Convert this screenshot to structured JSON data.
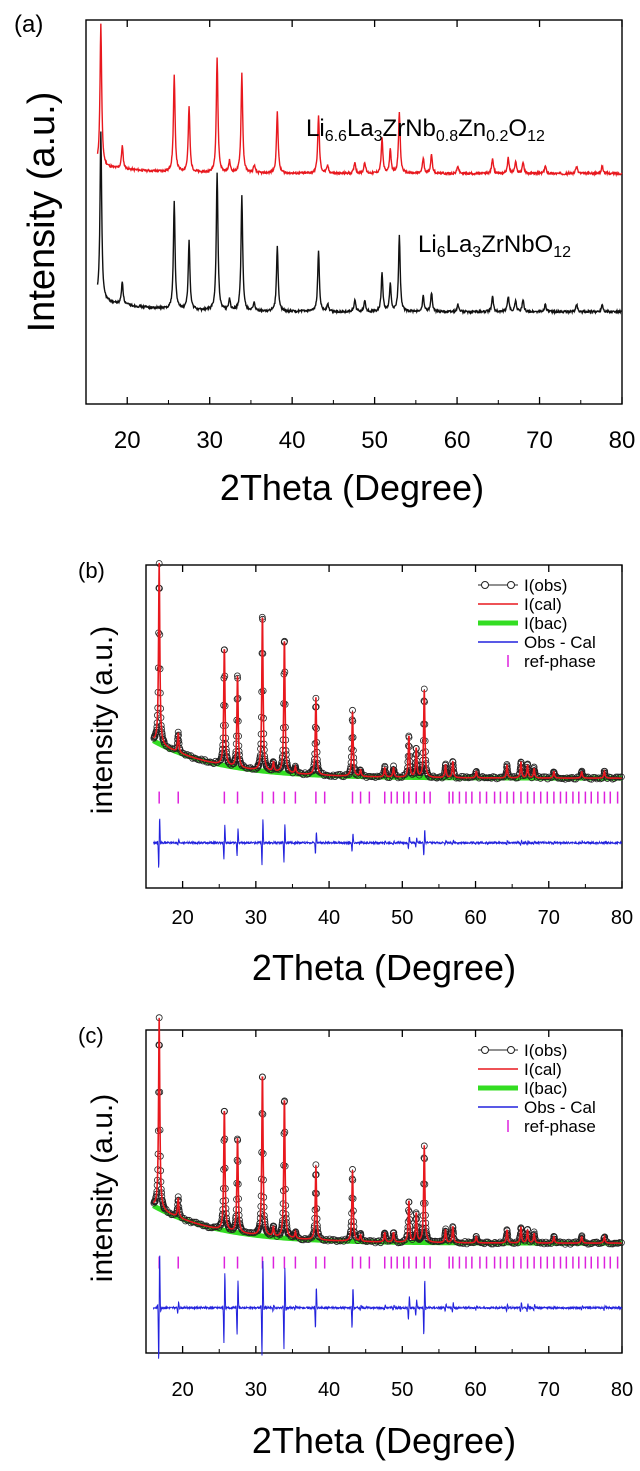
{
  "panels": [
    {
      "panel_label": "(a)",
      "ylabel": "Intensity (a.u.)",
      "xlabel": "2Theta (Degree)",
      "xticks": [
        "20",
        "30",
        "40",
        "50",
        "60",
        "70",
        "80"
      ],
      "legend": []
    },
    {
      "panel_label": "(b)",
      "ylabel": "intensity (a.u.)",
      "xlabel": "2Theta (Degree)",
      "xticks": [
        "20",
        "30",
        "40",
        "50",
        "60",
        "70",
        "80"
      ],
      "legend": [
        "I(obs)",
        "I(cal)",
        "I(bac)",
        "Obs - Cal",
        "ref-phase"
      ]
    },
    {
      "panel_label": "(c)",
      "ylabel": "intensity (a.u.)",
      "xlabel": "2Theta (Degree)",
      "xticks": [
        "20",
        "30",
        "40",
        "50",
        "60",
        "70",
        "80"
      ],
      "legend": [
        "I(obs)",
        "I(cal)",
        "I(bac)",
        "Obs - Cal",
        "ref-phase"
      ]
    }
  ],
  "chart_data": [
    {
      "type": "line",
      "panel": "(a)",
      "xlabel": "2Theta (Degree)",
      "ylabel": "Intensity (a.u.)",
      "xlim": [
        15,
        80
      ],
      "ylim": [
        0,
        100
      ],
      "y_ticks_shown": false,
      "series": [
        {
          "name": "Li6.6La3ZrNb0.8Zn0.2O12",
          "label_parts": [
            [
              "Li",
              ""
            ],
            [
              "6.6",
              "sub"
            ],
            [
              "La",
              ""
            ],
            [
              "3",
              "sub"
            ],
            [
              "ZrNb",
              ""
            ],
            [
              "0.8",
              "sub"
            ],
            [
              "Zn",
              ""
            ],
            [
              "0.2",
              "sub"
            ],
            [
              "O",
              ""
            ],
            [
              "12",
              "sub"
            ]
          ],
          "color": "#e8181e",
          "baseline": 60,
          "baseline_slope": 2.5,
          "peaks": [
            [
              16.8,
              37
            ],
            [
              19.4,
              6
            ],
            [
              25.7,
              25
            ],
            [
              27.5,
              17
            ],
            [
              30.9,
              30
            ],
            [
              32.4,
              3
            ],
            [
              33.9,
              26
            ],
            [
              35.4,
              2
            ],
            [
              38.2,
              16
            ],
            [
              43.2,
              15
            ],
            [
              44.3,
              2
            ],
            [
              47.6,
              3
            ],
            [
              48.8,
              3
            ],
            [
              50.9,
              9
            ],
            [
              51.9,
              6
            ],
            [
              53.0,
              16
            ],
            [
              55.9,
              4
            ],
            [
              56.9,
              5
            ],
            [
              60.1,
              2
            ],
            [
              64.3,
              4
            ],
            [
              66.2,
              4
            ],
            [
              67.1,
              3
            ],
            [
              68.0,
              3
            ],
            [
              70.7,
              2
            ],
            [
              74.5,
              2
            ],
            [
              77.6,
              2
            ]
          ]
        },
        {
          "name": "Li6La3ZrNbO12",
          "label_parts": [
            [
              "Li",
              ""
            ],
            [
              "6",
              "sub"
            ],
            [
              "La",
              ""
            ],
            [
              "3",
              "sub"
            ],
            [
              "ZrNbO",
              ""
            ],
            [
              "12",
              "sub"
            ]
          ],
          "color": "#111111",
          "baseline": 24,
          "baseline_slope": 4,
          "peaks": [
            [
              16.8,
              44
            ],
            [
              19.4,
              6
            ],
            [
              25.7,
              28
            ],
            [
              27.5,
              18
            ],
            [
              30.9,
              36
            ],
            [
              32.4,
              3
            ],
            [
              33.9,
              30
            ],
            [
              35.4,
              2
            ],
            [
              38.2,
              17
            ],
            [
              43.2,
              16
            ],
            [
              44.3,
              2
            ],
            [
              47.6,
              3
            ],
            [
              48.8,
              3
            ],
            [
              50.9,
              10
            ],
            [
              51.9,
              7
            ],
            [
              53.0,
              20
            ],
            [
              55.9,
              4
            ],
            [
              56.9,
              5
            ],
            [
              60.1,
              2
            ],
            [
              64.3,
              4
            ],
            [
              66.2,
              4
            ],
            [
              67.1,
              3
            ],
            [
              68.0,
              3
            ],
            [
              70.7,
              2
            ],
            [
              74.5,
              2
            ],
            [
              77.6,
              2
            ]
          ]
        }
      ]
    },
    {
      "type": "line",
      "panel": "(b)",
      "xlabel": "2Theta (Degree)",
      "ylabel": "intensity (a.u.)",
      "xlim": [
        15,
        80
      ],
      "ylim": [
        0,
        100
      ],
      "y_ticks_shown": false,
      "calc_peaks": [
        [
          16.8,
          56
        ],
        [
          19.4,
          6
        ],
        [
          25.7,
          37
        ],
        [
          27.5,
          29
        ],
        [
          30.9,
          49
        ],
        [
          32.4,
          3
        ],
        [
          33.9,
          42
        ],
        [
          35.4,
          2
        ],
        [
          38.2,
          24
        ],
        [
          43.2,
          20
        ],
        [
          44.3,
          2
        ],
        [
          47.6,
          3
        ],
        [
          48.8,
          3
        ],
        [
          50.9,
          13
        ],
        [
          51.9,
          9
        ],
        [
          53.0,
          27
        ],
        [
          55.9,
          4
        ],
        [
          56.9,
          5
        ],
        [
          60.1,
          2
        ],
        [
          64.3,
          4
        ],
        [
          66.2,
          5
        ],
        [
          67.1,
          4
        ],
        [
          68.0,
          3
        ],
        [
          70.7,
          2
        ],
        [
          74.5,
          2
        ],
        [
          77.6,
          2
        ]
      ],
      "background": {
        "start": 47,
        "end": 34
      },
      "difference_level": 14,
      "ref_level": 28,
      "ref_positions": [
        16.8,
        19.4,
        25.7,
        27.5,
        30.9,
        32.4,
        33.9,
        35.4,
        38.2,
        39.4,
        43.2,
        44.3,
        45.5,
        47.6,
        48.5,
        49.3,
        50.2,
        50.9,
        51.9,
        53.0,
        53.8,
        56.4,
        56.9,
        57.8,
        58.7,
        59.5,
        60.6,
        61.5,
        62.6,
        63.4,
        64.3,
        65.2,
        66.2,
        67.1,
        68.0,
        68.9,
        69.8,
        70.7,
        71.6,
        72.4,
        73.3,
        74.1,
        75.0,
        75.8,
        76.7,
        77.6,
        78.4,
        79.4
      ],
      "series": [
        {
          "name": "I(obs)",
          "role": "obs",
          "color": "#222222"
        },
        {
          "name": "I(cal)",
          "role": "cal",
          "color": "#e8181e"
        },
        {
          "name": "I(bac)",
          "role": "bac",
          "color": "#33dd22"
        },
        {
          "name": "Obs - Cal",
          "role": "diff",
          "color": "#2222dd"
        },
        {
          "name": "ref-phase",
          "role": "ref",
          "color": "#dd22dd"
        }
      ]
    },
    {
      "type": "line",
      "panel": "(c)",
      "xlabel": "2Theta (Degree)",
      "ylabel": "intensity (a.u.)",
      "xlim": [
        15,
        80
      ],
      "ylim": [
        0,
        100
      ],
      "y_ticks_shown": false,
      "calc_peaks": [
        [
          16.8,
          59
        ],
        [
          19.4,
          6
        ],
        [
          25.7,
          38
        ],
        [
          27.5,
          30
        ],
        [
          30.9,
          51
        ],
        [
          32.4,
          3
        ],
        [
          33.9,
          44
        ],
        [
          35.4,
          2
        ],
        [
          38.2,
          23
        ],
        [
          43.2,
          22
        ],
        [
          44.3,
          2
        ],
        [
          47.6,
          3
        ],
        [
          48.8,
          3
        ],
        [
          50.9,
          13
        ],
        [
          51.9,
          9
        ],
        [
          53.0,
          30
        ],
        [
          55.9,
          4
        ],
        [
          56.9,
          5
        ],
        [
          60.1,
          2
        ],
        [
          64.3,
          4
        ],
        [
          66.2,
          5
        ],
        [
          67.1,
          4
        ],
        [
          68.0,
          3
        ],
        [
          70.7,
          2
        ],
        [
          74.5,
          2
        ],
        [
          77.6,
          2
        ]
      ],
      "background": {
        "start": 47,
        "end": 34
      },
      "difference_level": 14,
      "ref_level": 28,
      "ref_positions": [
        16.8,
        19.4,
        25.7,
        27.5,
        30.9,
        32.4,
        33.9,
        35.4,
        38.2,
        39.4,
        43.2,
        44.3,
        45.5,
        47.6,
        48.5,
        49.3,
        50.2,
        50.9,
        51.9,
        53.0,
        53.8,
        56.4,
        56.9,
        57.8,
        58.7,
        59.5,
        60.6,
        61.5,
        62.6,
        63.4,
        64.3,
        65.2,
        66.2,
        67.1,
        68.0,
        68.9,
        69.8,
        70.7,
        71.6,
        72.4,
        73.3,
        74.1,
        75.0,
        75.8,
        76.7,
        77.6,
        78.4,
        79.4
      ],
      "series": [
        {
          "name": "I(obs)",
          "role": "obs",
          "color": "#222222"
        },
        {
          "name": "I(cal)",
          "role": "cal",
          "color": "#e8181e"
        },
        {
          "name": "I(bac)",
          "role": "bac",
          "color": "#33dd22"
        },
        {
          "name": "Obs - Cal",
          "role": "diff",
          "color": "#2222dd"
        },
        {
          "name": "ref-phase",
          "role": "ref",
          "color": "#dd22dd"
        }
      ]
    }
  ]
}
